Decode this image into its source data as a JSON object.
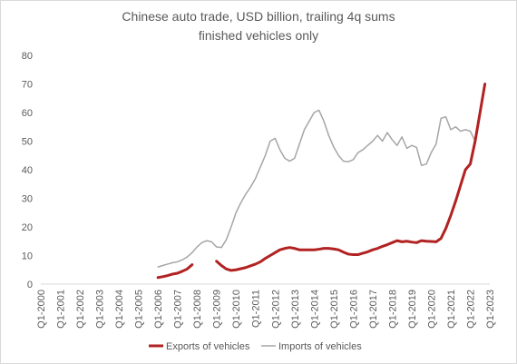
{
  "chart_data": {
    "type": "line",
    "title": "Chinese auto trade, USD billion, trailing 4q sums",
    "subtitle": "finished vehicles only",
    "xlabel": "",
    "ylabel": "",
    "x_start": "Q1-2000",
    "x_end": "Q1-2023",
    "ylim": [
      0,
      80
    ],
    "yticks": [
      0,
      10,
      20,
      30,
      40,
      50,
      60,
      70,
      80
    ],
    "xticks": [
      "Q1-2000",
      "Q1-2001",
      "Q1-2002",
      "Q1-2003",
      "Q1-2004",
      "Q1-2005",
      "Q1-2006",
      "Q1-2007",
      "Q1-2008",
      "Q1-2009",
      "Q1-2010",
      "Q1-2011",
      "Q1-2012",
      "Q1-2013",
      "Q1-2014",
      "Q1-2015",
      "Q1-2016",
      "Q1-2017",
      "Q1-2018",
      "Q1-2019",
      "Q1-2020",
      "Q1-2021",
      "Q1-2022",
      "Q1-2023"
    ],
    "grid": "none",
    "legend_position": "bottom",
    "series": [
      {
        "name": "Exports of vehicles",
        "color": "#b22222",
        "points": [
          [
            "Q1-2006",
            2.3
          ],
          [
            "Q2-2006",
            2.6
          ],
          [
            "Q3-2006",
            3.0
          ],
          [
            "Q4-2006",
            3.5
          ],
          [
            "Q1-2007",
            3.8
          ],
          [
            "Q2-2007",
            4.5
          ],
          [
            "Q3-2007",
            5.3
          ],
          [
            "Q4-2007",
            6.8
          ],
          [
            "Q1-2009",
            8.0
          ],
          [
            "Q2-2009",
            6.5
          ],
          [
            "Q3-2009",
            5.3
          ],
          [
            "Q4-2009",
            4.8
          ],
          [
            "Q1-2010",
            5.0
          ],
          [
            "Q2-2010",
            5.4
          ],
          [
            "Q3-2010",
            5.8
          ],
          [
            "Q4-2010",
            6.4
          ],
          [
            "Q1-2011",
            7.0
          ],
          [
            "Q2-2011",
            7.8
          ],
          [
            "Q3-2011",
            9.0
          ],
          [
            "Q4-2011",
            10.0
          ],
          [
            "Q1-2012",
            11.0
          ],
          [
            "Q2-2012",
            12.0
          ],
          [
            "Q3-2012",
            12.5
          ],
          [
            "Q4-2012",
            12.8
          ],
          [
            "Q1-2013",
            12.5
          ],
          [
            "Q2-2013",
            12.0
          ],
          [
            "Q3-2013",
            12.0
          ],
          [
            "Q4-2013",
            12.0
          ],
          [
            "Q1-2014",
            12.0
          ],
          [
            "Q2-2014",
            12.2
          ],
          [
            "Q3-2014",
            12.5
          ],
          [
            "Q4-2014",
            12.5
          ],
          [
            "Q1-2015",
            12.3
          ],
          [
            "Q2-2015",
            12.0
          ],
          [
            "Q3-2015",
            11.2
          ],
          [
            "Q4-2015",
            10.5
          ],
          [
            "Q1-2016",
            10.3
          ],
          [
            "Q2-2016",
            10.3
          ],
          [
            "Q3-2016",
            10.8
          ],
          [
            "Q4-2016",
            11.3
          ],
          [
            "Q1-2017",
            12.0
          ],
          [
            "Q2-2017",
            12.5
          ],
          [
            "Q3-2017",
            13.2
          ],
          [
            "Q4-2017",
            13.8
          ],
          [
            "Q1-2018",
            14.5
          ],
          [
            "Q2-2018",
            15.2
          ],
          [
            "Q3-2018",
            14.8
          ],
          [
            "Q4-2018",
            15.0
          ],
          [
            "Q1-2019",
            14.7
          ],
          [
            "Q2-2019",
            14.5
          ],
          [
            "Q3-2019",
            15.2
          ],
          [
            "Q4-2019",
            15.0
          ],
          [
            "Q1-2020",
            14.9
          ],
          [
            "Q2-2020",
            14.8
          ],
          [
            "Q3-2020",
            16.0
          ],
          [
            "Q4-2020",
            19.5
          ],
          [
            "Q1-2021",
            24.0
          ],
          [
            "Q2-2021",
            29.0
          ],
          [
            "Q3-2021",
            34.5
          ],
          [
            "Q4-2021",
            40.0
          ],
          [
            "Q1-2022",
            42.0
          ],
          [
            "Q2-2022",
            50.0
          ],
          [
            "Q3-2022",
            60.0
          ],
          [
            "Q4-2022",
            70.0
          ]
        ]
      },
      {
        "name": "Imports of vehicles",
        "color": "#a6a6a6",
        "points": [
          [
            "Q1-2006",
            6.0
          ],
          [
            "Q2-2006",
            6.5
          ],
          [
            "Q3-2006",
            7.0
          ],
          [
            "Q4-2006",
            7.5
          ],
          [
            "Q1-2007",
            7.8
          ],
          [
            "Q2-2007",
            8.5
          ],
          [
            "Q3-2007",
            9.5
          ],
          [
            "Q4-2007",
            11.0
          ],
          [
            "Q1-2008",
            13.0
          ],
          [
            "Q2-2008",
            14.5
          ],
          [
            "Q3-2008",
            15.2
          ],
          [
            "Q4-2008",
            14.8
          ],
          [
            "Q1-2009",
            13.0
          ],
          [
            "Q2-2009",
            12.8
          ],
          [
            "Q3-2009",
            15.5
          ],
          [
            "Q4-2009",
            20.0
          ],
          [
            "Q1-2010",
            25.0
          ],
          [
            "Q2-2010",
            28.5
          ],
          [
            "Q3-2010",
            31.5
          ],
          [
            "Q4-2010",
            34.0
          ],
          [
            "Q1-2011",
            37.0
          ],
          [
            "Q2-2011",
            41.0
          ],
          [
            "Q3-2011",
            45.0
          ],
          [
            "Q4-2011",
            50.0
          ],
          [
            "Q1-2012",
            51.0
          ],
          [
            "Q2-2012",
            47.0
          ],
          [
            "Q3-2012",
            44.0
          ],
          [
            "Q4-2012",
            43.0
          ],
          [
            "Q1-2013",
            44.0
          ],
          [
            "Q2-2013",
            49.0
          ],
          [
            "Q3-2013",
            54.0
          ],
          [
            "Q4-2013",
            57.0
          ],
          [
            "Q1-2014",
            60.0
          ],
          [
            "Q2-2014",
            60.8
          ],
          [
            "Q3-2014",
            57.0
          ],
          [
            "Q4-2014",
            52.0
          ],
          [
            "Q1-2015",
            48.0
          ],
          [
            "Q2-2015",
            45.0
          ],
          [
            "Q3-2015",
            43.0
          ],
          [
            "Q4-2015",
            42.8
          ],
          [
            "Q1-2016",
            43.5
          ],
          [
            "Q2-2016",
            46.0
          ],
          [
            "Q3-2016",
            47.0
          ],
          [
            "Q4-2016",
            48.5
          ],
          [
            "Q1-2017",
            50.0
          ],
          [
            "Q2-2017",
            52.0
          ],
          [
            "Q3-2017",
            50.0
          ],
          [
            "Q4-2017",
            53.0
          ],
          [
            "Q1-2018",
            50.5
          ],
          [
            "Q2-2018",
            48.5
          ],
          [
            "Q3-2018",
            51.5
          ],
          [
            "Q4-2018",
            47.5
          ],
          [
            "Q1-2019",
            48.5
          ],
          [
            "Q2-2019",
            47.8
          ],
          [
            "Q3-2019",
            41.5
          ],
          [
            "Q4-2019",
            42.0
          ],
          [
            "Q1-2020",
            46.0
          ],
          [
            "Q2-2020",
            49.0
          ],
          [
            "Q3-2020",
            58.0
          ],
          [
            "Q4-2020",
            58.5
          ],
          [
            "Q1-2021",
            54.0
          ],
          [
            "Q2-2021",
            55.0
          ],
          [
            "Q3-2021",
            53.5
          ],
          [
            "Q4-2021",
            54.0
          ],
          [
            "Q1-2022",
            53.5
          ],
          [
            "Q2-2022",
            50.0
          ]
        ]
      }
    ]
  }
}
